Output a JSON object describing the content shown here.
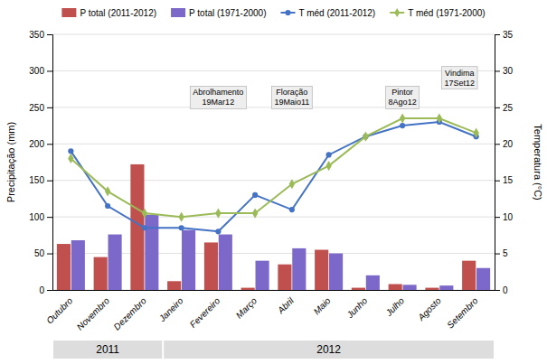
{
  "chart_data": {
    "type": "bar",
    "categories": [
      "Outubro",
      "Novembro",
      "Dezembro",
      "Janeiro",
      "Fevereiro",
      "Março",
      "Abril",
      "Maio",
      "Junho",
      "Julho",
      "Agosto",
      "Setembro"
    ],
    "series": [
      {
        "name": "P total (2011-2012)",
        "type": "bar",
        "color": "#c0504d",
        "values": [
          63,
          45,
          172,
          12,
          65,
          3,
          35,
          55,
          3,
          8,
          3,
          40
        ]
      },
      {
        "name": "P total (1971-2000)",
        "type": "bar",
        "color": "#7b68c8",
        "values": [
          68,
          76,
          103,
          82,
          76,
          40,
          57,
          50,
          20,
          7,
          6,
          30
        ]
      },
      {
        "name": "T méd (2011-2012)",
        "type": "line",
        "axis": "y2",
        "marker": "circle",
        "color": "#4472c4",
        "values": [
          19.0,
          11.5,
          8.5,
          8.5,
          8.0,
          13.0,
          11.0,
          18.5,
          21.0,
          22.5,
          23.0,
          21.0
        ]
      },
      {
        "name": "T méd (1971-2000)",
        "type": "line",
        "axis": "y2",
        "marker": "diamond",
        "color": "#9bbb59",
        "values": [
          18.0,
          13.5,
          10.5,
          10.0,
          10.5,
          10.5,
          14.5,
          17.0,
          21.0,
          23.5,
          23.5,
          21.5
        ]
      }
    ],
    "ylabel": "Precipitação (mm)",
    "y2label": "Temperatura (°C)",
    "ylim": [
      0,
      350
    ],
    "yticks": [
      0,
      50,
      100,
      150,
      200,
      250,
      300,
      350
    ],
    "y2lim": [
      0,
      35
    ],
    "y2ticks": [
      0,
      5,
      10,
      15,
      20,
      25,
      30,
      35
    ],
    "grid": true,
    "legend": "top",
    "annotations": [
      {
        "text": "Abrolhamento\n19Mar12",
        "x": 4,
        "y": 248
      },
      {
        "text": "Floração\n19Maio11",
        "x": 6,
        "y": 248
      },
      {
        "text": "Pintor\n8Ago12",
        "x": 9,
        "y": 248
      },
      {
        "text": "Vindima\n17Set12",
        "x": 10.55,
        "y": 275
      }
    ],
    "x_groups": [
      {
        "label": "2011",
        "count": 3
      },
      {
        "label": "2012",
        "count": 9
      }
    ]
  }
}
